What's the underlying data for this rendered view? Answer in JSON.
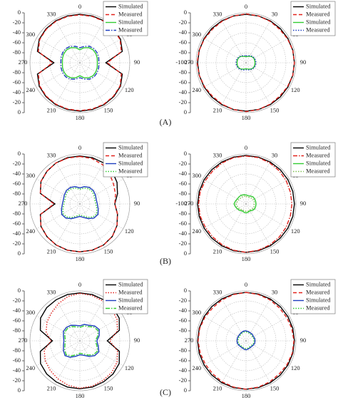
{
  "panel_labels": [
    "(A)",
    "(B)",
    "(C)"
  ],
  "chart_data": [
    {
      "type": "polar",
      "theta": [
        0,
        15,
        30,
        45,
        60,
        75,
        90,
        105,
        120,
        135,
        150,
        165,
        180,
        195,
        210,
        225,
        240,
        255,
        270,
        285,
        300,
        315,
        330,
        345
      ],
      "thetaticks": [
        0,
        30,
        60,
        90,
        120,
        150,
        180,
        210,
        240,
        270,
        300,
        330
      ],
      "rlim": [
        -100,
        0
      ],
      "rticks": [
        0,
        -20,
        -40,
        -60,
        -80
      ],
      "grid": true,
      "legend": "upper right",
      "series": [
        {
          "name": "Simulated",
          "color": "#000000",
          "style": "solid",
          "values": [
            -3,
            -3,
            -3,
            -4,
            -6,
            -12,
            -48,
            -12,
            -6,
            -4,
            -3,
            -3,
            -3,
            -3,
            -3,
            -4,
            -6,
            -12,
            -48,
            -12,
            -6,
            -4,
            -3,
            -3
          ]
        },
        {
          "name": "Measured",
          "color": "#e3221c",
          "style": "dash",
          "values": [
            -4,
            -4,
            -4,
            -5,
            -7,
            -14,
            -45,
            -14,
            -7,
            -5,
            -4,
            -4,
            -4,
            -4,
            -4,
            -5,
            -7,
            -14,
            -45,
            -14,
            -7,
            -5,
            -4,
            -4
          ]
        },
        {
          "name": "Simulated",
          "color": "#33cc33",
          "style": "solid",
          "values": [
            -74,
            -69,
            -65,
            -63,
            -63,
            -64,
            -65,
            -64,
            -63,
            -63,
            -65,
            -69,
            -74,
            -69,
            -65,
            -63,
            -63,
            -64,
            -65,
            -64,
            -63,
            -63,
            -65,
            -69
          ]
        },
        {
          "name": "Measured",
          "color": "#1f3fbf",
          "style": "dashdot",
          "values": [
            -70,
            -66,
            -62,
            -60,
            -60,
            -61,
            -62,
            -61,
            -60,
            -60,
            -62,
            -66,
            -70,
            -66,
            -62,
            -60,
            -60,
            -61,
            -62,
            -61,
            -60,
            -60,
            -62,
            -66
          ]
        }
      ]
    },
    {
      "type": "polar",
      "theta": [
        0,
        15,
        30,
        45,
        60,
        75,
        90,
        105,
        120,
        135,
        150,
        165,
        180,
        195,
        210,
        225,
        240,
        255,
        270,
        285,
        300,
        315,
        330,
        345
      ],
      "thetaticks": [
        0,
        30,
        60,
        90,
        120,
        150,
        180,
        210,
        240,
        270,
        300,
        330
      ],
      "rlim": [
        -100,
        0
      ],
      "rticks": [
        0,
        -20,
        -40,
        -60,
        -80,
        -100
      ],
      "grid": true,
      "legend": "upper right",
      "series": [
        {
          "name": "Simulated",
          "color": "#000000",
          "style": "solid",
          "values": [
            -3,
            -3,
            -3,
            -3,
            -3,
            -3,
            -3,
            -3,
            -3,
            -3,
            -3,
            -3,
            -3,
            -3,
            -3,
            -3,
            -3,
            -3,
            -3,
            -3,
            -3,
            -3,
            -3,
            -3
          ]
        },
        {
          "name": "Measured",
          "color": "#e3221c",
          "style": "dash",
          "values": [
            -2,
            -3,
            -4,
            -5,
            -4,
            -3,
            -3,
            -3,
            -4,
            -5,
            -4,
            -3,
            -2,
            -3,
            -4,
            -5,
            -4,
            -3,
            -2,
            -3,
            -4,
            -5,
            -4,
            -3
          ]
        },
        {
          "name": "Simulated",
          "color": "#33cc33",
          "style": "solid",
          "values": [
            -88,
            -87,
            -85,
            -83,
            -82,
            -82,
            -82,
            -82,
            -82,
            -83,
            -85,
            -87,
            -88,
            -87,
            -85,
            -83,
            -82,
            -82,
            -82,
            -82,
            -82,
            -83,
            -85,
            -87
          ]
        },
        {
          "name": "Measured",
          "color": "#1f3fbf",
          "style": "dot",
          "values": [
            -86,
            -85,
            -84,
            -82,
            -81,
            -80,
            -80,
            -80,
            -81,
            -82,
            -84,
            -85,
            -86,
            -85,
            -84,
            -82,
            -81,
            -80,
            -80,
            -80,
            -81,
            -82,
            -84,
            -85
          ]
        }
      ]
    },
    {
      "type": "polar",
      "theta": [
        0,
        15,
        30,
        45,
        60,
        75,
        90,
        105,
        120,
        135,
        150,
        165,
        180,
        195,
        210,
        225,
        240,
        255,
        270,
        285,
        300,
        315,
        330,
        345
      ],
      "thetaticks": [
        0,
        30,
        60,
        90,
        120,
        150,
        180,
        210,
        240,
        270,
        300,
        330
      ],
      "rlim": [
        -100,
        0
      ],
      "rticks": [
        0,
        -20,
        -40,
        -60,
        -80
      ],
      "grid": true,
      "legend": "upper right",
      "series": [
        {
          "name": "Simulated",
          "color": "#000000",
          "style": "solid",
          "values": [
            -4,
            -4,
            -5,
            -8,
            -14,
            -22,
            -30,
            -22,
            -14,
            -8,
            -5,
            -4,
            -4,
            -4,
            -5,
            -7,
            -10,
            -18,
            -50,
            -18,
            -10,
            -7,
            -5,
            -4
          ]
        },
        {
          "name": "Measured",
          "color": "#e3221c",
          "style": "dash",
          "values": [
            -5,
            -6,
            -9,
            -15,
            -22,
            -26,
            -30,
            -22,
            -14,
            -8,
            -5,
            -4,
            -4,
            -4,
            -5,
            -7,
            -10,
            -18,
            -48,
            -18,
            -10,
            -7,
            -5,
            -5
          ]
        },
        {
          "name": "Simulated",
          "color": "#1f3fbf",
          "style": "solid",
          "values": [
            -68,
            -64,
            -62,
            -62,
            -64,
            -66,
            -65,
            -62,
            -58,
            -60,
            -66,
            -72,
            -75,
            -72,
            -66,
            -60,
            -58,
            -62,
            -65,
            -66,
            -64,
            -62,
            -62,
            -64
          ]
        },
        {
          "name": "Measured",
          "color": "#33cc33",
          "style": "dot",
          "values": [
            -71,
            -67,
            -65,
            -65,
            -67,
            -69,
            -68,
            -65,
            -61,
            -63,
            -69,
            -75,
            -78,
            -75,
            -69,
            -63,
            -61,
            -65,
            -68,
            -69,
            -67,
            -65,
            -65,
            -67
          ]
        }
      ]
    },
    {
      "type": "polar",
      "theta": [
        0,
        15,
        30,
        45,
        60,
        75,
        90,
        105,
        120,
        135,
        150,
        165,
        180,
        195,
        210,
        225,
        240,
        255,
        270,
        285,
        300,
        315,
        330,
        345
      ],
      "thetaticks": [
        0,
        30,
        60,
        90,
        120,
        150,
        180,
        210,
        240,
        270,
        300,
        330
      ],
      "rlim": [
        -100,
        0
      ],
      "rticks": [
        0,
        -20,
        -40,
        -60,
        -80,
        -100
      ],
      "grid": true,
      "legend": "upper right",
      "series": [
        {
          "name": "Simulated",
          "color": "#000000",
          "style": "solid",
          "values": [
            -3,
            -3,
            -3,
            -3,
            -3,
            -3,
            -3,
            -3,
            -3,
            -3,
            -3,
            -3,
            -3,
            -3,
            -3,
            -3,
            -3,
            -3,
            -3,
            -3,
            -3,
            -3,
            -3,
            -3
          ]
        },
        {
          "name": "Measured",
          "color": "#e3221c",
          "style": "dashdot",
          "values": [
            -4,
            -4,
            -5,
            -6,
            -7,
            -8,
            -8,
            -8,
            -7,
            -6,
            -5,
            -4,
            -3,
            -4,
            -5,
            -6,
            -6,
            -5,
            -5,
            -5,
            -6,
            -6,
            -5,
            -4
          ]
        },
        {
          "name": "Simulated",
          "color": "#33cc33",
          "style": "solid",
          "values": [
            -82,
            -83,
            -82,
            -80,
            -80,
            -80,
            -80,
            -80,
            -80,
            -82,
            -84,
            -83,
            -82,
            -83,
            -84,
            -82,
            -80,
            -78,
            -76,
            -78,
            -80,
            -80,
            -80,
            -81
          ]
        },
        {
          "name": "Measured",
          "color": "#7fbf4f",
          "style": "dot",
          "values": [
            -85,
            -86,
            -85,
            -84,
            -83,
            -83,
            -84,
            -83,
            -83,
            -85,
            -86,
            -85,
            -85,
            -86,
            -86,
            -85,
            -83,
            -82,
            -80,
            -82,
            -83,
            -84,
            -84,
            -84
          ]
        }
      ]
    },
    {
      "type": "polar",
      "theta": [
        0,
        15,
        30,
        45,
        60,
        75,
        90,
        105,
        120,
        135,
        150,
        165,
        180,
        195,
        210,
        225,
        240,
        255,
        270,
        285,
        300,
        315,
        330,
        345
      ],
      "thetaticks": [
        0,
        30,
        60,
        90,
        120,
        150,
        180,
        210,
        240,
        270,
        300,
        330
      ],
      "rlim": [
        -100,
        0
      ],
      "rticks": [
        0,
        -20,
        -40,
        -60,
        -80
      ],
      "grid": true,
      "legend": "upper right",
      "series": [
        {
          "name": "Simulated",
          "color": "#000000",
          "style": "solid",
          "values": [
            -4,
            -4,
            -5,
            -6,
            -9,
            -18,
            -45,
            -18,
            -9,
            -6,
            -5,
            -4,
            -4,
            -4,
            -5,
            -6,
            -9,
            -18,
            -45,
            -18,
            -9,
            -6,
            -5,
            -4
          ]
        },
        {
          "name": "Measured",
          "color": "#e3221c",
          "style": "dot",
          "values": [
            -5,
            -6,
            -8,
            -10,
            -14,
            -22,
            -40,
            -22,
            -14,
            -10,
            -8,
            -6,
            -5,
            -8,
            -12,
            -16,
            -20,
            -26,
            -42,
            -30,
            -24,
            -20,
            -14,
            -8
          ]
        },
        {
          "name": "Simulated",
          "color": "#1f3fbf",
          "style": "solid",
          "values": [
            -70,
            -66,
            -64,
            -58,
            -55,
            -60,
            -66,
            -62,
            -56,
            -58,
            -64,
            -70,
            -72,
            -68,
            -62,
            -58,
            -62,
            -66,
            -68,
            -66,
            -62,
            -62,
            -64,
            -68
          ]
        },
        {
          "name": "Measured",
          "color": "#33cc33",
          "style": "dashdot",
          "values": [
            -73,
            -69,
            -67,
            -61,
            -58,
            -63,
            -69,
            -65,
            -59,
            -61,
            -67,
            -73,
            -75,
            -71,
            -65,
            -61,
            -65,
            -69,
            -71,
            -69,
            -65,
            -65,
            -67,
            -71
          ]
        }
      ]
    },
    {
      "type": "polar",
      "theta": [
        0,
        15,
        30,
        45,
        60,
        75,
        90,
        105,
        120,
        135,
        150,
        165,
        180,
        195,
        210,
        225,
        240,
        255,
        270,
        285,
        300,
        315,
        330,
        345
      ],
      "thetaticks": [
        0,
        30,
        60,
        90,
        120,
        150,
        180,
        210,
        240,
        270,
        300,
        330
      ],
      "rlim": [
        -100,
        0
      ],
      "rticks": [
        0,
        -20,
        -40,
        -60,
        -80
      ],
      "grid": true,
      "legend": "upper right",
      "series": [
        {
          "name": "Simulated",
          "color": "#000000",
          "style": "solid",
          "values": [
            -3,
            -3,
            -3,
            -3,
            -3,
            -3,
            -3,
            -3,
            -3,
            -3,
            -3,
            -3,
            -3,
            -3,
            -3,
            -3,
            -3,
            -3,
            -3,
            -3,
            -3,
            -3,
            -3,
            -3
          ]
        },
        {
          "name": "Measured",
          "color": "#e3221c",
          "style": "dash",
          "values": [
            -3,
            -4,
            -5,
            -6,
            -6,
            -5,
            -4,
            -4,
            -5,
            -6,
            -5,
            -4,
            -3,
            -4,
            -5,
            -6,
            -6,
            -5,
            -4,
            -4,
            -5,
            -6,
            -5,
            -4
          ]
        },
        {
          "name": "Simulated",
          "color": "#1f3fbf",
          "style": "solid",
          "values": [
            -80,
            -81,
            -82,
            -82,
            -83,
            -82,
            -82,
            -82,
            -83,
            -84,
            -84,
            -83,
            -82,
            -83,
            -84,
            -84,
            -83,
            -82,
            -82,
            -82,
            -82,
            -82,
            -81,
            -80
          ]
        },
        {
          "name": "Measured",
          "color": "#33cc33",
          "style": "dot",
          "values": [
            -82,
            -83,
            -84,
            -84,
            -85,
            -84,
            -84,
            -84,
            -85,
            -86,
            -86,
            -85,
            -84,
            -85,
            -86,
            -86,
            -85,
            -84,
            -84,
            -84,
            -84,
            -84,
            -83,
            -82
          ]
        }
      ]
    }
  ]
}
